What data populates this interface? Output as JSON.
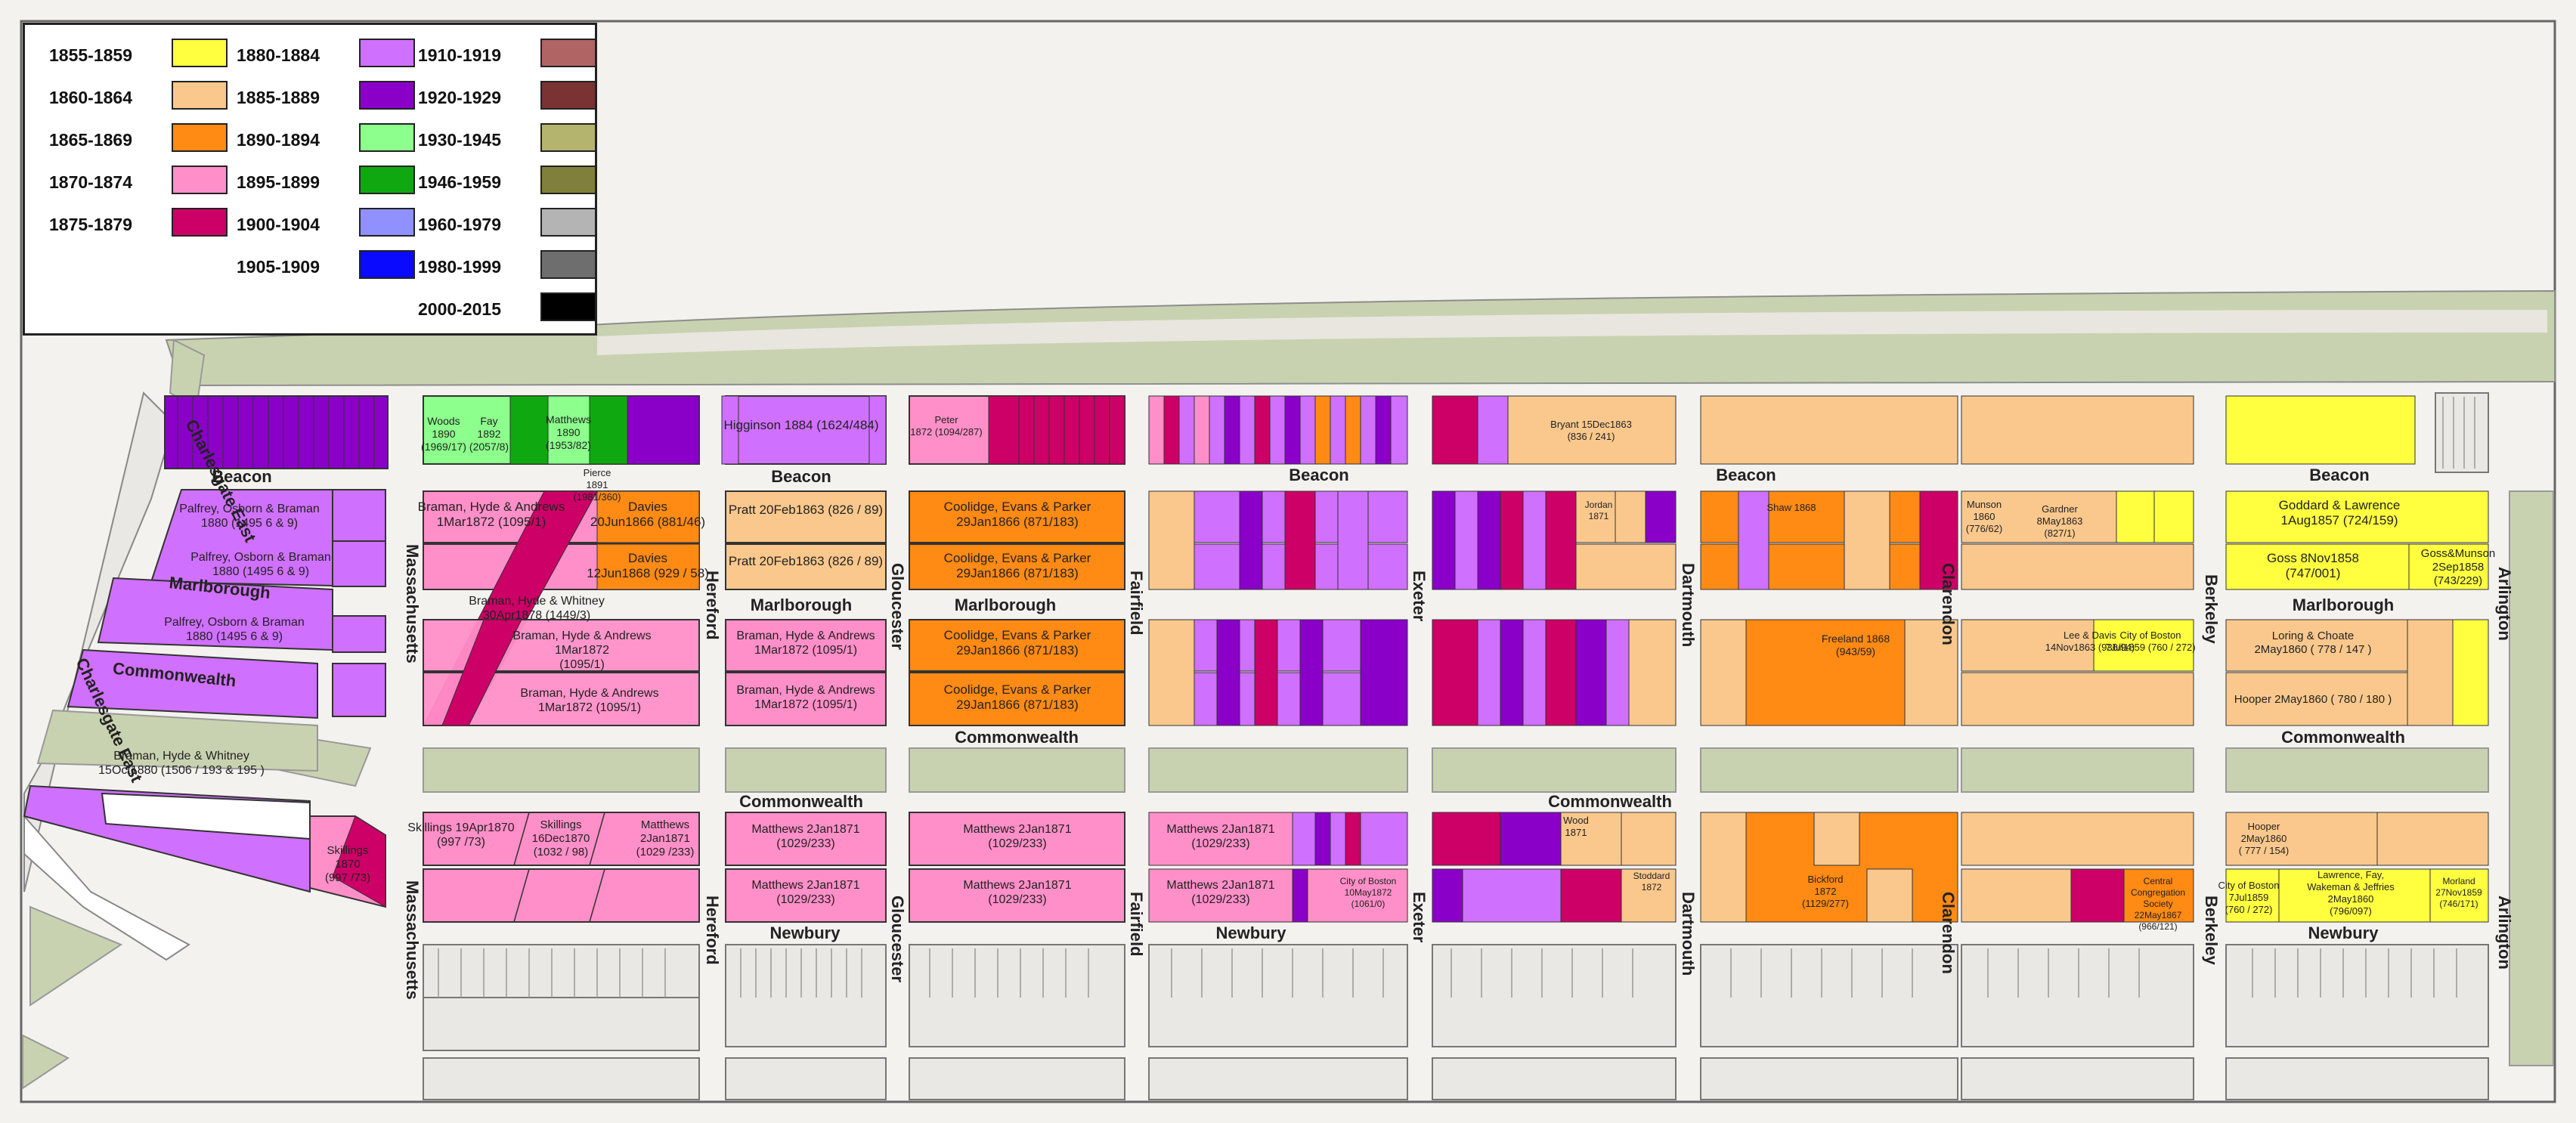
{
  "legend": {
    "entries": [
      {
        "label": "1855-1859",
        "color": "#ffff40"
      },
      {
        "label": "1860-1864",
        "color": "#fac88c"
      },
      {
        "label": "1865-1869",
        "color": "#ff8a14"
      },
      {
        "label": "1870-1874",
        "color": "#ff8fc8"
      },
      {
        "label": "1875-1879",
        "color": "#cc0066"
      },
      {
        "label": "1880-1884",
        "color": "#d070ff"
      },
      {
        "label": "1885-1889",
        "color": "#8a00c8"
      },
      {
        "label": "1890-1894",
        "color": "#8cff8c"
      },
      {
        "label": "1895-1899",
        "color": "#10a810"
      },
      {
        "label": "1900-1904",
        "color": "#9090ff"
      },
      {
        "label": "1905-1909",
        "color": "#0a0aff"
      },
      {
        "label": "1910-1919",
        "color": "#b06464"
      },
      {
        "label": "1920-1929",
        "color": "#7a3232"
      },
      {
        "label": "1930-1945",
        "color": "#b4b46e"
      },
      {
        "label": "1946-1959",
        "color": "#80803c"
      },
      {
        "label": "1960-1979",
        "color": "#b4b4b4"
      },
      {
        "label": "1980-1999",
        "color": "#6e6e6e"
      },
      {
        "label": "2000-2015",
        "color": "#000000"
      }
    ]
  },
  "streets": {
    "beacon": "Beacon",
    "marlborough": "Marlborough",
    "commonwealth": "Commonwealth",
    "newbury": "Newbury",
    "charlesgate_east": "Charlesgate East",
    "massachusetts": "Massachusetts",
    "hereford": "Hereford",
    "gloucester": "Gloucester",
    "fairfield": "Fairfield",
    "exeter": "Exeter",
    "dartmouth": "Dartmouth",
    "clarendon": "Clarendon",
    "berkeley": "Berkeley",
    "arlington": "Arlington"
  },
  "lots": [
    {
      "id": "a1",
      "lines": [
        "Palfrey, Osborn & Braman",
        "1880 (1495 6 & 9)"
      ]
    },
    {
      "id": "a2",
      "lines": [
        "Palfrey, Osborn & Braman",
        "1880 (1495 6 & 9)"
      ]
    },
    {
      "id": "a3",
      "lines": [
        "Palfrey, Osborn & Braman",
        "1880 (1495 6 & 9)"
      ]
    },
    {
      "id": "a4",
      "lines": [
        "Braman, Hyde & Whitney",
        "15Oct1880 (1506 / 193 & 195 )"
      ]
    },
    {
      "id": "a5",
      "lines": [
        "Skillings",
        "1870",
        "(997 /73)"
      ]
    },
    {
      "id": "b1",
      "lines": [
        "Woods",
        "1890",
        "(1969/17)"
      ]
    },
    {
      "id": "b2",
      "lines": [
        "Fay",
        "1892",
        "(2057/8)"
      ]
    },
    {
      "id": "b3",
      "lines": [
        "Matthews",
        "1890",
        "(1953/82)"
      ]
    },
    {
      "id": "b4",
      "lines": [
        "Pierce",
        "1891",
        "(1981/360)"
      ]
    },
    {
      "id": "b5",
      "lines": [
        "Braman, Hyde & Andrews",
        "1Mar1872 (1095/1)"
      ]
    },
    {
      "id": "b6",
      "lines": [
        "Davies",
        "20Jun1866 (881/46)"
      ]
    },
    {
      "id": "b7",
      "lines": [
        "Davies",
        "12Jun1868 (929 / 58)"
      ]
    },
    {
      "id": "b8",
      "lines": [
        "Braman, Hyde & Whitney",
        "30Apr1878 (1449/3)"
      ]
    },
    {
      "id": "b9",
      "lines": [
        "Braman, Hyde & Andrews",
        "1Mar1872",
        "(1095/1)"
      ]
    },
    {
      "id": "b10",
      "lines": [
        "Braman, Hyde & Andrews",
        "1Mar1872 (1095/1)"
      ]
    },
    {
      "id": "b11",
      "lines": [
        "Skillings 19Apr1870",
        "(997 /73)"
      ]
    },
    {
      "id": "b12",
      "lines": [
        "Skillings",
        "16Dec1870",
        "(1032 / 98)"
      ]
    },
    {
      "id": "b13",
      "lines": [
        "Matthews",
        "2Jan1871",
        "(1029 /233)"
      ]
    },
    {
      "id": "c1",
      "lines": [
        "Higginson 1884 (1624/484)"
      ]
    },
    {
      "id": "c2",
      "lines": [
        "Pratt 20Feb1863 (826 / 89)"
      ]
    },
    {
      "id": "c3",
      "lines": [
        "Pratt 20Feb1863 (826 / 89)"
      ]
    },
    {
      "id": "c4",
      "lines": [
        "Braman, Hyde & Andrews",
        "1Mar1872 (1095/1)"
      ]
    },
    {
      "id": "c5",
      "lines": [
        "Braman, Hyde & Andrews",
        "1Mar1872 (1095/1)"
      ]
    },
    {
      "id": "c6",
      "lines": [
        "Matthews 2Jan1871",
        "(1029/233)"
      ]
    },
    {
      "id": "c7",
      "lines": [
        "Matthews 2Jan1871",
        "(1029/233)"
      ]
    },
    {
      "id": "d1",
      "lines": [
        "Peter",
        "1872 (1094/287)"
      ]
    },
    {
      "id": "d2",
      "lines": [
        "Coolidge, Evans & Parker",
        "29Jan1866 (871/183)"
      ]
    },
    {
      "id": "d3",
      "lines": [
        "Coolidge, Evans & Parker",
        "29Jan1866 (871/183)"
      ]
    },
    {
      "id": "d4",
      "lines": [
        "Coolidge, Evans & Parker",
        "29Jan1866 (871/183)"
      ]
    },
    {
      "id": "d5",
      "lines": [
        "Coolidge, Evans & Parker",
        "29Jan1866 (871/183)"
      ]
    },
    {
      "id": "d6",
      "lines": [
        "Matthews 2Jan1871",
        "(1029/233)"
      ]
    },
    {
      "id": "d7",
      "lines": [
        "Matthews 2Jan1871",
        "(1029/233)"
      ]
    },
    {
      "id": "e1",
      "lines": [
        "Matthews 2Jan1871",
        "(1029/233)"
      ]
    },
    {
      "id": "e2",
      "lines": [
        "Matthews 2Jan1871",
        "(1029/233)"
      ]
    },
    {
      "id": "e3",
      "lines": [
        "City of Boston",
        "10May1872",
        "(1061/0)"
      ]
    },
    {
      "id": "f1",
      "lines": [
        "Bryant 15Dec1863",
        "(836 / 241)"
      ]
    },
    {
      "id": "f2",
      "lines": [
        "Jordan",
        "1871"
      ]
    },
    {
      "id": "f3",
      "lines": [
        "Wood",
        "1871"
      ]
    },
    {
      "id": "f4",
      "lines": [
        "Stoddard",
        "1872"
      ]
    },
    {
      "id": "g1",
      "lines": [
        "Freeland 1868",
        "(943/59)"
      ]
    },
    {
      "id": "g2",
      "lines": [
        "Shaw 1868"
      ]
    },
    {
      "id": "g3",
      "lines": [
        "Bickford",
        "1872",
        "(1129/277)"
      ]
    },
    {
      "id": "h1",
      "lines": [
        "Munson",
        "1860",
        "(776/62)"
      ]
    },
    {
      "id": "h2",
      "lines": [
        "Gardner",
        "8May1863",
        "(827/1)"
      ]
    },
    {
      "id": "h3",
      "lines": [
        "Lee & Davis",
        "14Nov1863 (936/94)"
      ]
    },
    {
      "id": "h4",
      "lines": [
        "City of Boston",
        "7Jul1859 (760 / 272)"
      ]
    },
    {
      "id": "h5",
      "lines": [
        "Central",
        "Congregation",
        "Society",
        "22May1867",
        "(966/121)"
      ]
    },
    {
      "id": "i1",
      "lines": [
        "Goddard & Lawrence",
        "1Aug1857 (724/159)"
      ]
    },
    {
      "id": "i2",
      "lines": [
        "Goss 8Nov1858",
        "(747/001)"
      ]
    },
    {
      "id": "i3",
      "lines": [
        "Goss&Munson",
        "2Sep1858",
        "(743/229)"
      ]
    },
    {
      "id": "i4",
      "lines": [
        "Loring & Choate",
        "2May1860 ( 778 / 147 )"
      ]
    },
    {
      "id": "i5",
      "lines": [
        "Hooper 2May1860 ( 780 / 180 )"
      ]
    },
    {
      "id": "i6",
      "lines": [
        "Hooper",
        "2May1860",
        "( 777 / 154)"
      ]
    },
    {
      "id": "i7",
      "lines": [
        "Lawrence, Fay,",
        "Wakeman & Jeffries",
        "2May1860",
        "(796/097)"
      ]
    },
    {
      "id": "i8",
      "lines": [
        "City of Boston",
        "7Jul1859",
        "(760 / 272)"
      ]
    },
    {
      "id": "i9",
      "lines": [
        "Morland",
        "27Nov1859",
        "(746/171)"
      ]
    }
  ]
}
